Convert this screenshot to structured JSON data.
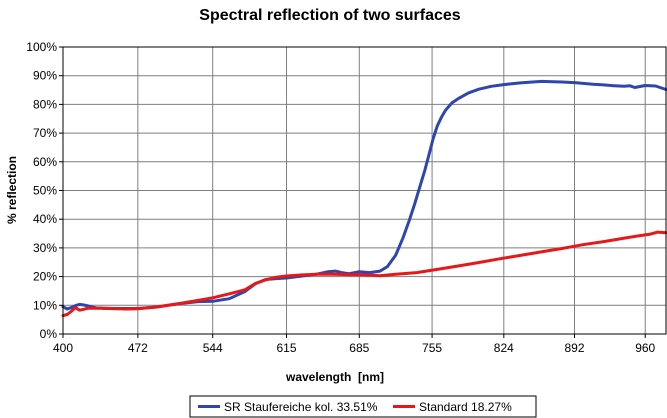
{
  "chart_data": {
    "type": "line",
    "title": "Spectral reflection of two surfaces",
    "xlabel": "wavelength  [nm]",
    "ylabel": "% reflection",
    "xlim": [
      400,
      980
    ],
    "ylim": [
      0,
      100
    ],
    "x_ticks": [
      400,
      472,
      544,
      615,
      685,
      755,
      824,
      892,
      960
    ],
    "y_ticks": [
      "0%",
      "10%",
      "20%",
      "30%",
      "40%",
      "50%",
      "60%",
      "70%",
      "80%",
      "90%",
      "100%"
    ],
    "grid": true,
    "legend_position": "bottom",
    "series": [
      {
        "name": "SR Staufereiche kol. 33.51%",
        "color": "#2f45b0",
        "x": [
          400,
          404,
          408,
          412,
          416,
          420,
          424,
          428,
          432,
          440,
          450,
          460,
          472,
          490,
          510,
          530,
          544,
          560,
          575,
          585,
          595,
          605,
          615,
          630,
          645,
          655,
          662,
          668,
          675,
          685,
          695,
          705,
          712,
          720,
          727,
          733,
          738,
          743,
          748,
          752,
          756,
          760,
          764,
          768,
          774,
          780,
          790,
          800,
          812,
          824,
          840,
          860,
          880,
          892,
          910,
          920,
          930,
          940,
          945,
          950,
          960,
          970,
          980
        ],
        "y": [
          9.5,
          8.7,
          9.2,
          9.9,
          10.3,
          10.1,
          9.8,
          9.4,
          9.1,
          9.0,
          8.9,
          8.9,
          8.9,
          9.4,
          10.5,
          11.3,
          11.4,
          12.3,
          14.8,
          17.5,
          19.0,
          19.3,
          19.5,
          20.2,
          20.9,
          21.7,
          21.9,
          21.4,
          21.0,
          21.7,
          21.4,
          21.9,
          23.5,
          27.5,
          33.5,
          39.5,
          45.0,
          51.0,
          57.0,
          62.5,
          68.0,
          72.5,
          75.5,
          78.0,
          80.5,
          82.0,
          84.0,
          85.3,
          86.3,
          86.9,
          87.5,
          88.0,
          87.8,
          87.6,
          87.0,
          86.8,
          86.5,
          86.3,
          86.5,
          85.9,
          86.6,
          86.4,
          85.2
        ]
      },
      {
        "name": "Standard 18.27%",
        "color": "#e81818",
        "x": [
          400,
          404,
          408,
          412,
          416,
          420,
          424,
          428,
          436,
          444,
          452,
          460,
          472,
          490,
          510,
          530,
          544,
          560,
          575,
          585,
          595,
          605,
          615,
          630,
          645,
          660,
          675,
          690,
          705,
          720,
          740,
          760,
          780,
          800,
          820,
          840,
          860,
          880,
          900,
          920,
          940,
          955,
          965,
          972,
          980
        ],
        "y": [
          6.4,
          6.8,
          7.9,
          9.2,
          8.3,
          8.6,
          9.0,
          9.0,
          9.0,
          8.9,
          8.8,
          8.7,
          8.8,
          9.4,
          10.5,
          11.7,
          12.6,
          14.0,
          15.4,
          17.6,
          18.9,
          19.8,
          20.2,
          20.6,
          20.8,
          20.8,
          20.7,
          20.6,
          20.3,
          20.8,
          21.4,
          22.5,
          23.7,
          24.9,
          26.2,
          27.4,
          28.6,
          29.8,
          31.1,
          32.2,
          33.4,
          34.3,
          34.8,
          35.5,
          35.3
        ]
      }
    ]
  }
}
